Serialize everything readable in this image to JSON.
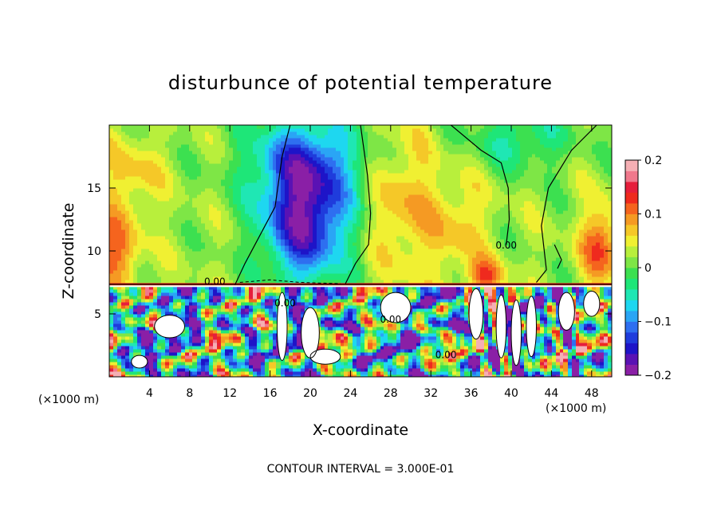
{
  "chart_data": {
    "type": "heatmap",
    "title": "disturbunce of potential temperature",
    "xlabel": "X-coordinate",
    "ylabel": "Z-coordinate",
    "x_unit": "(×1000 m)",
    "xlim": [
      0,
      50
    ],
    "ylim": [
      0,
      20
    ],
    "x_ticks": [
      4,
      8,
      12,
      16,
      20,
      24,
      28,
      32,
      36,
      40,
      44,
      48
    ],
    "y_ticks": [
      5,
      10,
      15
    ],
    "colorbar": {
      "range": [
        -0.2,
        0.2
      ],
      "tick_values": [
        0.2,
        0.1,
        0,
        -0.1,
        -0.2
      ],
      "tick_labels": [
        "0.2",
        "0.1",
        "0",
        "−0.1",
        "−0.2"
      ]
    },
    "contour_labels": [
      {
        "text": "0.00",
        "x": 10.5,
        "z": 7.3
      },
      {
        "text": "0.00",
        "x": 17.5,
        "z": 5.6
      },
      {
        "text": "0.00",
        "x": 28.0,
        "z": 4.3
      },
      {
        "text": "0.00",
        "x": 39.5,
        "z": 10.2
      },
      {
        "text": "0.00",
        "x": 33.5,
        "z": 1.5
      }
    ],
    "footer": "CONTOUR INTERVAL = 3.000E-01"
  }
}
